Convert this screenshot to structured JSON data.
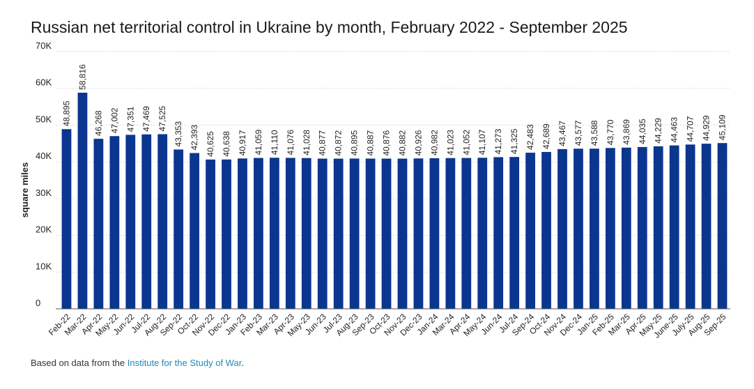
{
  "title": "Russian net territorial control in Ukraine by month, February 2022 - September 2025",
  "footer": {
    "prefix": "Based on data from the ",
    "source": "Institute for the Study of War",
    "suffix": "."
  },
  "colors": {
    "bar": "#0a3690",
    "grid": "#d9d9d9",
    "axis": "#555555",
    "text": "#222222"
  },
  "chart_data": {
    "type": "bar",
    "title": "Russian net territorial control in Ukraine by month, February 2022 - September 2025",
    "xlabel": "",
    "ylabel": "square miles",
    "ylim": [
      0,
      70000
    ],
    "yticks": [
      0,
      10000,
      20000,
      30000,
      40000,
      50000,
      60000,
      70000
    ],
    "ytick_labels": [
      "0",
      "10K",
      "20K",
      "30K",
      "40K",
      "50K",
      "60K",
      "70K"
    ],
    "grid": true,
    "categories": [
      "Feb-22",
      "Mar-22",
      "Apr-22",
      "May-22",
      "Jun-22",
      "Jul-22",
      "Aug-22",
      "Sep-22",
      "Oct-22",
      "Nov-22",
      "Dec-22",
      "Jan-23",
      "Feb-23",
      "Mar-23",
      "Apr-23",
      "May-23",
      "Jun-23",
      "Jul-23",
      "Aug-23",
      "Sep-23",
      "Oct-23",
      "Nov-23",
      "Dec-23",
      "Jan-24",
      "Mar-24",
      "Apr-24",
      "May-24",
      "Jun-24",
      "Jul-24",
      "Sep-24",
      "Oct-24",
      "Nov-24",
      "Dec-24",
      "Jan-25",
      "Feb-25",
      "Mar-25",
      "Apr-25",
      "May-25",
      "June-25",
      "July-25",
      "Aug-25",
      "Sep-25"
    ],
    "values": [
      48895,
      58816,
      46268,
      47002,
      47351,
      47469,
      47525,
      43353,
      42393,
      40625,
      40638,
      40917,
      41059,
      41110,
      41076,
      41028,
      40877,
      40872,
      40895,
      40887,
      40876,
      40882,
      40926,
      40982,
      41023,
      41052,
      41107,
      41273,
      41325,
      42483,
      42689,
      43467,
      43577,
      43588,
      43770,
      43869,
      44035,
      44229,
      44463,
      44707,
      44929,
      45109
    ],
    "data_labels": [
      "48,895",
      "58,816",
      "46,268",
      "47,002",
      "47,351",
      "47,469",
      "47,525",
      "43,353",
      "42,393",
      "40,625",
      "40,638",
      "40,917",
      "41,059",
      "41,110",
      "41,076",
      "41,028",
      "40,877",
      "40,872",
      "40,895",
      "40,887",
      "40,876",
      "40,882",
      "40,926",
      "40,982",
      "41,023",
      "41,052",
      "41,107",
      "41,273",
      "41,325",
      "42,483",
      "42,689",
      "43,467",
      "43,577",
      "43,588",
      "43,770",
      "43,869",
      "44,035",
      "44,229",
      "44,463",
      "44,707",
      "44,929",
      "45,109"
    ]
  }
}
